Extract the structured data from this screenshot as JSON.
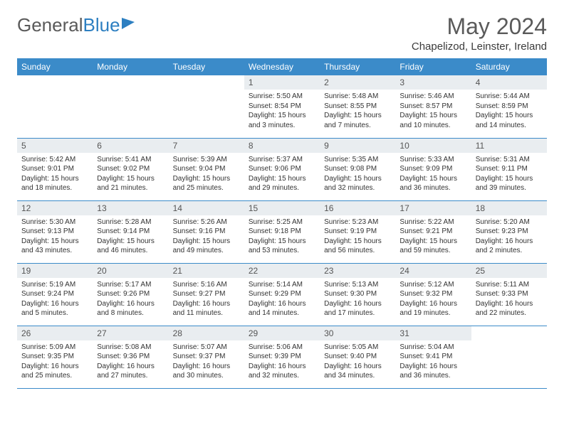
{
  "brand": {
    "part1": "General",
    "part2": "Blue"
  },
  "title": "May 2024",
  "location": "Chapelizod, Leinster, Ireland",
  "colors": {
    "header_bg": "#3b8bc9",
    "header_text": "#ffffff",
    "daynum_bg": "#e9edf0",
    "rule": "#3b8bc9",
    "title_color": "#5a5a5a",
    "body_text": "#333333"
  },
  "typography": {
    "title_fontsize": 32,
    "location_fontsize": 15,
    "header_fontsize": 12,
    "cell_fontsize": 10
  },
  "weekdays": [
    "Sunday",
    "Monday",
    "Tuesday",
    "Wednesday",
    "Thursday",
    "Friday",
    "Saturday"
  ],
  "weeks": [
    [
      null,
      null,
      null,
      {
        "n": "1",
        "sr": "5:50 AM",
        "ss": "8:54 PM",
        "dl": "15 hours and 3 minutes."
      },
      {
        "n": "2",
        "sr": "5:48 AM",
        "ss": "8:55 PM",
        "dl": "15 hours and 7 minutes."
      },
      {
        "n": "3",
        "sr": "5:46 AM",
        "ss": "8:57 PM",
        "dl": "15 hours and 10 minutes."
      },
      {
        "n": "4",
        "sr": "5:44 AM",
        "ss": "8:59 PM",
        "dl": "15 hours and 14 minutes."
      }
    ],
    [
      {
        "n": "5",
        "sr": "5:42 AM",
        "ss": "9:01 PM",
        "dl": "15 hours and 18 minutes."
      },
      {
        "n": "6",
        "sr": "5:41 AM",
        "ss": "9:02 PM",
        "dl": "15 hours and 21 minutes."
      },
      {
        "n": "7",
        "sr": "5:39 AM",
        "ss": "9:04 PM",
        "dl": "15 hours and 25 minutes."
      },
      {
        "n": "8",
        "sr": "5:37 AM",
        "ss": "9:06 PM",
        "dl": "15 hours and 29 minutes."
      },
      {
        "n": "9",
        "sr": "5:35 AM",
        "ss": "9:08 PM",
        "dl": "15 hours and 32 minutes."
      },
      {
        "n": "10",
        "sr": "5:33 AM",
        "ss": "9:09 PM",
        "dl": "15 hours and 36 minutes."
      },
      {
        "n": "11",
        "sr": "5:31 AM",
        "ss": "9:11 PM",
        "dl": "15 hours and 39 minutes."
      }
    ],
    [
      {
        "n": "12",
        "sr": "5:30 AM",
        "ss": "9:13 PM",
        "dl": "15 hours and 43 minutes."
      },
      {
        "n": "13",
        "sr": "5:28 AM",
        "ss": "9:14 PM",
        "dl": "15 hours and 46 minutes."
      },
      {
        "n": "14",
        "sr": "5:26 AM",
        "ss": "9:16 PM",
        "dl": "15 hours and 49 minutes."
      },
      {
        "n": "15",
        "sr": "5:25 AM",
        "ss": "9:18 PM",
        "dl": "15 hours and 53 minutes."
      },
      {
        "n": "16",
        "sr": "5:23 AM",
        "ss": "9:19 PM",
        "dl": "15 hours and 56 minutes."
      },
      {
        "n": "17",
        "sr": "5:22 AM",
        "ss": "9:21 PM",
        "dl": "15 hours and 59 minutes."
      },
      {
        "n": "18",
        "sr": "5:20 AM",
        "ss": "9:23 PM",
        "dl": "16 hours and 2 minutes."
      }
    ],
    [
      {
        "n": "19",
        "sr": "5:19 AM",
        "ss": "9:24 PM",
        "dl": "16 hours and 5 minutes."
      },
      {
        "n": "20",
        "sr": "5:17 AM",
        "ss": "9:26 PM",
        "dl": "16 hours and 8 minutes."
      },
      {
        "n": "21",
        "sr": "5:16 AM",
        "ss": "9:27 PM",
        "dl": "16 hours and 11 minutes."
      },
      {
        "n": "22",
        "sr": "5:14 AM",
        "ss": "9:29 PM",
        "dl": "16 hours and 14 minutes."
      },
      {
        "n": "23",
        "sr": "5:13 AM",
        "ss": "9:30 PM",
        "dl": "16 hours and 17 minutes."
      },
      {
        "n": "24",
        "sr": "5:12 AM",
        "ss": "9:32 PM",
        "dl": "16 hours and 19 minutes."
      },
      {
        "n": "25",
        "sr": "5:11 AM",
        "ss": "9:33 PM",
        "dl": "16 hours and 22 minutes."
      }
    ],
    [
      {
        "n": "26",
        "sr": "5:09 AM",
        "ss": "9:35 PM",
        "dl": "16 hours and 25 minutes."
      },
      {
        "n": "27",
        "sr": "5:08 AM",
        "ss": "9:36 PM",
        "dl": "16 hours and 27 minutes."
      },
      {
        "n": "28",
        "sr": "5:07 AM",
        "ss": "9:37 PM",
        "dl": "16 hours and 30 minutes."
      },
      {
        "n": "29",
        "sr": "5:06 AM",
        "ss": "9:39 PM",
        "dl": "16 hours and 32 minutes."
      },
      {
        "n": "30",
        "sr": "5:05 AM",
        "ss": "9:40 PM",
        "dl": "16 hours and 34 minutes."
      },
      {
        "n": "31",
        "sr": "5:04 AM",
        "ss": "9:41 PM",
        "dl": "16 hours and 36 minutes."
      },
      null
    ]
  ],
  "labels": {
    "sunrise": "Sunrise: ",
    "sunset": "Sunset: ",
    "daylight": "Daylight: "
  }
}
